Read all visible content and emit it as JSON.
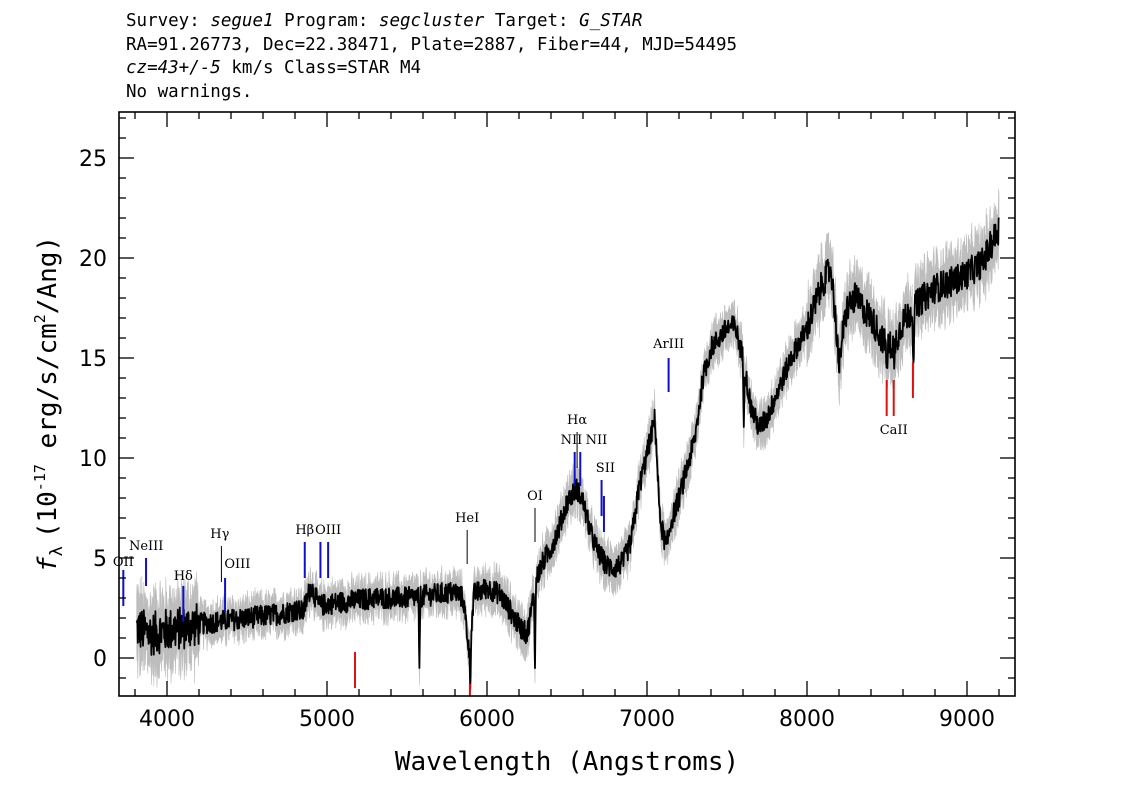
{
  "header": {
    "survey_label": "Survey:",
    "survey": "segue1",
    "program_label": "Program:",
    "program": "segcluster",
    "target_label": "Target:",
    "target": "G_STAR",
    "line2": "RA=91.26773, Dec=22.38471, Plate=2887, Fiber=44, MJD=54495",
    "cz": "cz=43+/-5",
    "cz_unit_class": "km/s Class=STAR M4",
    "warnings": "No warnings."
  },
  "chart_data": {
    "type": "line",
    "xlabel": "Wavelength (Angstroms)",
    "ylabel_symbol": "f",
    "ylabel_sub": "λ",
    "ylabel_pre": "(10",
    "ylabel_exp1": "-17",
    "ylabel_mid": " erg/s/cm",
    "ylabel_exp2": "2",
    "ylabel_post": "/Ang)",
    "xlim": [
      3700,
      9300
    ],
    "ylim": [
      -1.9,
      27.3
    ],
    "xticks": [
      4000,
      5000,
      6000,
      7000,
      8000,
      9000
    ],
    "yticks": [
      0,
      5,
      10,
      15,
      20,
      25
    ],
    "xtick_labels": [
      "4000",
      "5000",
      "6000",
      "7000",
      "8000",
      "9000"
    ],
    "ytick_labels": [
      "0",
      "5",
      "10",
      "15",
      "20",
      "25"
    ],
    "grid": false,
    "colors": {
      "flux": "#000000",
      "error": "#bdbdbd",
      "emission": "#1010c8",
      "absorption": "#dd1111",
      "neutral": "#000000"
    },
    "continuum": [
      [
        3810,
        1.5
      ],
      [
        3900,
        1.2
      ],
      [
        4000,
        1.4
      ],
      [
        4100,
        1.5
      ],
      [
        4200,
        1.7
      ],
      [
        4300,
        1.8
      ],
      [
        4400,
        1.9
      ],
      [
        4500,
        2.0
      ],
      [
        4600,
        2.1
      ],
      [
        4700,
        2.2
      ],
      [
        4800,
        2.4
      ],
      [
        4850,
        2.3
      ],
      [
        4900,
        3.6
      ],
      [
        4950,
        2.6
      ],
      [
        5000,
        2.7
      ],
      [
        5100,
        2.8
      ],
      [
        5200,
        2.9
      ],
      [
        5300,
        3.0
      ],
      [
        5400,
        3.0
      ],
      [
        5500,
        3.0
      ],
      [
        5600,
        3.1
      ],
      [
        5700,
        3.2
      ],
      [
        5800,
        3.3
      ],
      [
        5850,
        3.0
      ],
      [
        5890,
        0.3
      ],
      [
        5920,
        3.2
      ],
      [
        6000,
        3.5
      ],
      [
        6080,
        3.2
      ],
      [
        6150,
        2.3
      ],
      [
        6200,
        1.6
      ],
      [
        6250,
        1.2
      ],
      [
        6280,
        2.5
      ],
      [
        6300,
        3.8
      ],
      [
        6350,
        4.8
      ],
      [
        6400,
        5.5
      ],
      [
        6450,
        6.5
      ],
      [
        6500,
        7.8
      ],
      [
        6560,
        8.5
      ],
      [
        6600,
        7.8
      ],
      [
        6650,
        6.2
      ],
      [
        6700,
        5.2
      ],
      [
        6750,
        4.6
      ],
      [
        6800,
        4.5
      ],
      [
        6850,
        4.8
      ],
      [
        6900,
        5.8
      ],
      [
        6950,
        8.5
      ],
      [
        7000,
        10.2
      ],
      [
        7050,
        12.0
      ],
      [
        7080,
        7.0
      ],
      [
        7120,
        5.5
      ],
      [
        7150,
        6.8
      ],
      [
        7200,
        8.0
      ],
      [
        7300,
        11.0
      ],
      [
        7350,
        14.0
      ],
      [
        7400,
        15.5
      ],
      [
        7450,
        16.0
      ],
      [
        7500,
        16.5
      ],
      [
        7550,
        16.6
      ],
      [
        7600,
        15.0
      ],
      [
        7650,
        12.5
      ],
      [
        7700,
        11.5
      ],
      [
        7750,
        12.0
      ],
      [
        7800,
        13.0
      ],
      [
        7900,
        15.0
      ],
      [
        8000,
        16.5
      ],
      [
        8100,
        18.8
      ],
      [
        8150,
        19.5
      ],
      [
        8200,
        15.0
      ],
      [
        8250,
        17.5
      ],
      [
        8300,
        18.0
      ],
      [
        8400,
        17.0
      ],
      [
        8500,
        15.5
      ],
      [
        8550,
        15.8
      ],
      [
        8600,
        16.8
      ],
      [
        8700,
        17.8
      ],
      [
        8800,
        18.5
      ],
      [
        8900,
        18.8
      ],
      [
        9000,
        19.2
      ],
      [
        9100,
        19.8
      ],
      [
        9200,
        21.5
      ]
    ],
    "dips": [
      [
        5577,
        -1.0
      ],
      [
        5895,
        -1.5
      ],
      [
        6300,
        -0.8
      ],
      [
        7605,
        12.0
      ],
      [
        8200,
        13.6
      ],
      [
        8500,
        14.2
      ],
      [
        8545,
        14.0
      ],
      [
        8665,
        14.5
      ]
    ],
    "lines": [
      {
        "label": "OII",
        "x": 3727,
        "y0": 2.6,
        "y1": 4.4,
        "color": "emission",
        "lx": 3727,
        "ly": 4.6
      },
      {
        "label": "NeIII",
        "x": 3869,
        "y0": 3.6,
        "y1": 5.0,
        "color": "emission",
        "lx": 3870,
        "ly": 5.4
      },
      {
        "label": "Hδ",
        "x": 4102,
        "y0": 1.8,
        "y1": 3.6,
        "color": "emission",
        "lx": 4102,
        "ly": 3.9
      },
      {
        "label": "Hγ",
        "x": 4340,
        "y0": 3.8,
        "y1": 5.6,
        "color": "neutral",
        "lx": 4330,
        "ly": 6.0
      },
      {
        "label": "OIII",
        "x": 4363,
        "y0": 2.3,
        "y1": 4.0,
        "color": "emission",
        "lx": 4440,
        "ly": 4.5
      },
      {
        "label": "Hβ",
        "x": 4861,
        "y0": 4.0,
        "y1": 5.8,
        "color": "emission",
        "lx": 4861,
        "ly": 6.2
      },
      {
        "label": "OIII",
        "x": 4959,
        "y0": 4.0,
        "y1": 5.8,
        "color": "emission",
        "lx": 5007,
        "ly": 6.2
      },
      {
        "label": "",
        "x": 5007,
        "y0": 4.0,
        "y1": 5.8,
        "color": "emission",
        "lx": 5007,
        "ly": 6.2
      },
      {
        "label": "HeI",
        "x": 5876,
        "y0": 4.7,
        "y1": 6.4,
        "color": "neutral",
        "lx": 5876,
        "ly": 6.8
      },
      {
        "label": "OI",
        "x": 6300,
        "y0": 5.8,
        "y1": 7.5,
        "color": "neutral",
        "lx": 6300,
        "ly": 7.9
      },
      {
        "label": "NII",
        "x": 6548,
        "y0": 8.6,
        "y1": 10.3,
        "color": "emission",
        "lx": 6528,
        "ly": 10.7
      },
      {
        "label": "Hα",
        "x": 6563,
        "y0": 9.5,
        "y1": 11.3,
        "color": "neutral",
        "lx": 6563,
        "ly": 11.7
      },
      {
        "label": "NII",
        "x": 6583,
        "y0": 8.6,
        "y1": 10.3,
        "color": "emission",
        "lx": 6684,
        "ly": 10.7
      },
      {
        "label": "SII",
        "x": 6716,
        "y0": 7.1,
        "y1": 8.9,
        "color": "emission",
        "lx": 6740,
        "ly": 9.3
      },
      {
        "label": "",
        "x": 6731,
        "y0": 6.3,
        "y1": 8.1,
        "color": "emission",
        "lx": 6740,
        "ly": 9.3
      },
      {
        "label": "ArIII",
        "x": 7135,
        "y0": 13.3,
        "y1": 15.0,
        "color": "emission",
        "lx": 7135,
        "ly": 15.5
      },
      {
        "label": "",
        "x": 5175,
        "y0": -1.5,
        "y1": 0.3,
        "color": "absorption",
        "lx": 0,
        "ly": 0
      },
      {
        "label": "",
        "x": 5893,
        "y0": -1.9,
        "y1": -1.3,
        "color": "absorption",
        "lx": 0,
        "ly": 0
      },
      {
        "label": "CaII",
        "x": 8498,
        "y0": 12.1,
        "y1": 13.9,
        "color": "absorption",
        "lx": 8542,
        "ly": 11.2
      },
      {
        "label": "",
        "x": 8542,
        "y0": 12.1,
        "y1": 13.9,
        "color": "absorption",
        "lx": 0,
        "ly": 0
      },
      {
        "label": "",
        "x": 8662,
        "y0": 13.0,
        "y1": 14.8,
        "color": "absorption",
        "lx": 0,
        "ly": 0
      }
    ]
  }
}
